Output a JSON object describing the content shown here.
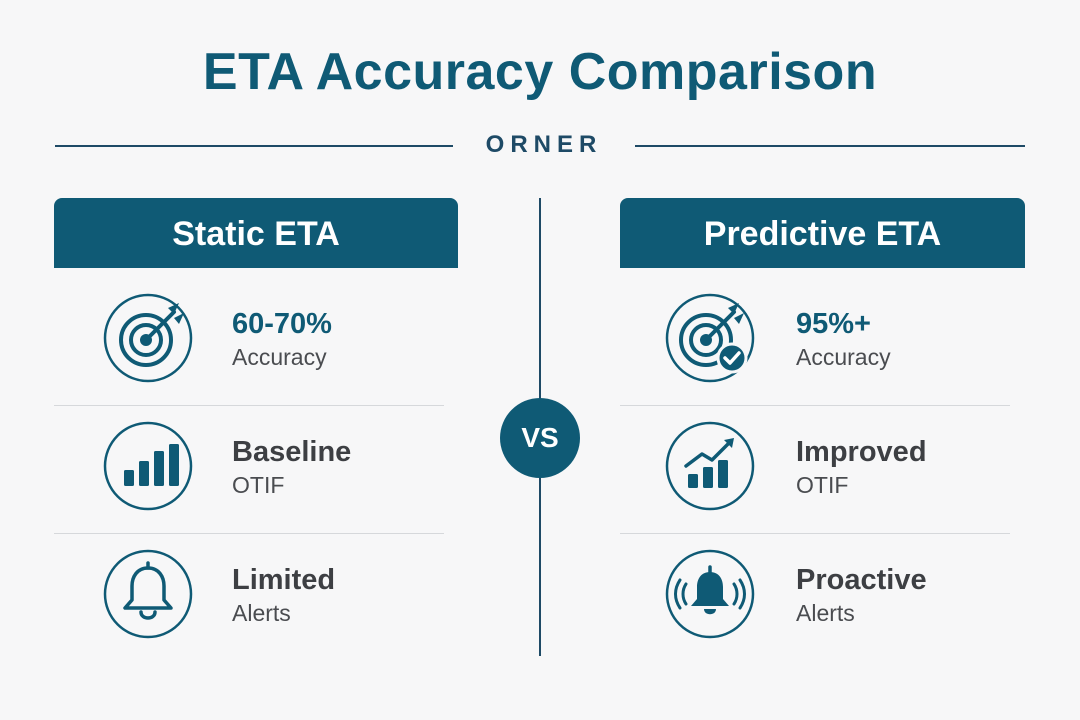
{
  "header": {
    "title": "ETA Accuracy Comparison",
    "subtitle": "ORNER"
  },
  "vs_label": "VS",
  "left": {
    "header": "Static ETA",
    "items": [
      {
        "icon": "target-icon",
        "value": "60-70%",
        "label": "Accuracy"
      },
      {
        "icon": "bar-chart-icon",
        "value": "Baseline",
        "label": "OTIF"
      },
      {
        "icon": "bell-icon",
        "value": "Limited",
        "label": "Alerts"
      }
    ]
  },
  "right": {
    "header": "Predictive ETA",
    "items": [
      {
        "icon": "target-check-icon",
        "value": "95%+",
        "label": "Accuracy"
      },
      {
        "icon": "trending-bar-chart-icon",
        "value": "Improved",
        "label": "OTIF"
      },
      {
        "icon": "ringing-bell-icon",
        "value": "Proactive",
        "label": "Alerts"
      }
    ]
  },
  "colors": {
    "accent": "#0f5a75",
    "rule": "#1e4a66",
    "background": "#f7f7f8",
    "text": "#3e4045"
  }
}
